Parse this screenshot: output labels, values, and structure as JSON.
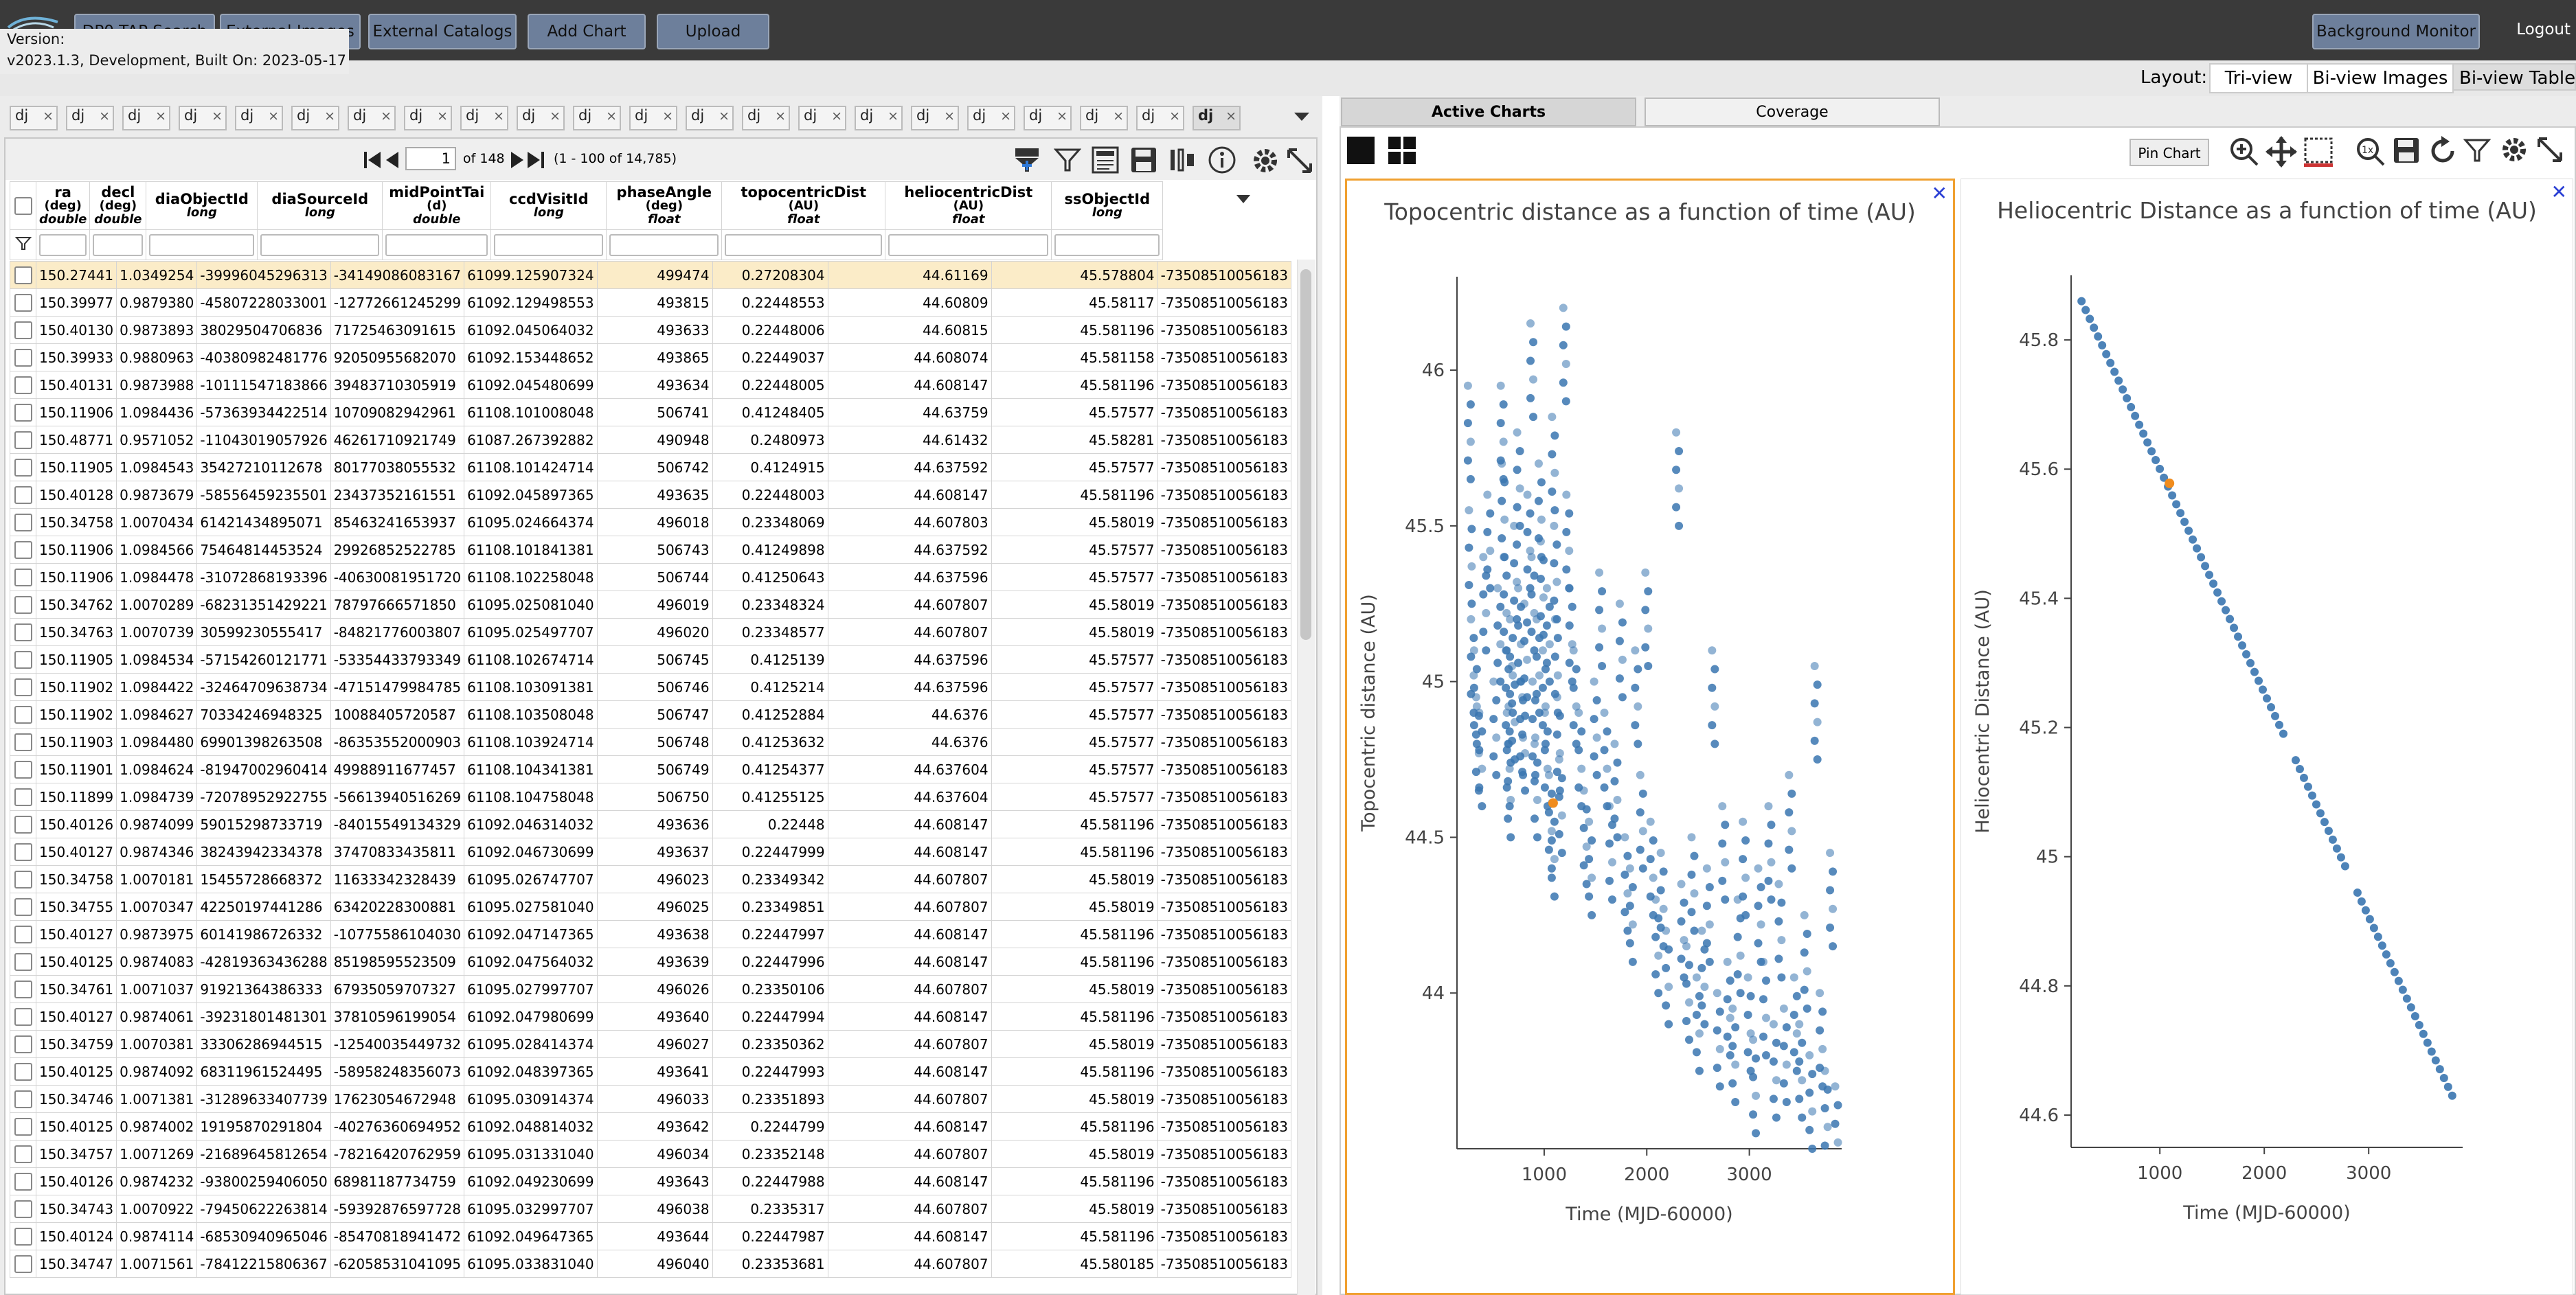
{
  "toolbar": {
    "buttons": [
      "DP0 TAP Search",
      "External Images",
      "External Catalogs",
      "Add Chart",
      "Upload"
    ],
    "right_buttons": [
      "Background Monitor"
    ],
    "logout": "Logout"
  },
  "version": {
    "line1": "Version:",
    "line2": "v2023.1.3, Development, Built On: 2023-05-17"
  },
  "layout": {
    "label": "Layout:",
    "options": [
      "Tri-view",
      "Bi-view Images",
      "Bi-view Tables"
    ]
  },
  "tables": {
    "tab_label": "dj",
    "tab_count": 22,
    "active_tab_label": "dj",
    "pager": {
      "page": "1",
      "of": "of 148",
      "range": "(1 - 100 of 14,785)"
    },
    "columns": [
      {
        "name": "ra",
        "unit": "(deg)",
        "type": "double"
      },
      {
        "name": "decl",
        "unit": "(deg)",
        "type": "double"
      },
      {
        "name": "diaObjectId",
        "unit": "",
        "type": "long"
      },
      {
        "name": "diaSourceId",
        "unit": "",
        "type": "long"
      },
      {
        "name": "midPointTai",
        "unit": "(d)",
        "type": "double"
      },
      {
        "name": "ccdVisitId",
        "unit": "",
        "type": "long"
      },
      {
        "name": "phaseAngle",
        "unit": "(deg)",
        "type": "float"
      },
      {
        "name": "topocentricDist",
        "unit": "(AU)",
        "type": "float"
      },
      {
        "name": "heliocentricDist",
        "unit": "(AU)",
        "type": "float"
      },
      {
        "name": "ssObjectId",
        "unit": "",
        "type": "long"
      }
    ],
    "rows": [
      [
        "150.27441",
        "1.0349254",
        "-39996045296313",
        "-34149086083167",
        "61099.125907324",
        "499474",
        "0.27208304",
        "44.61169",
        "45.578804",
        "-73508510056183"
      ],
      [
        "150.39977",
        "0.9879380",
        "-45807228033001",
        "-12772661245299",
        "61092.129498553",
        "493815",
        "0.22448553",
        "44.60809",
        "45.58117",
        "-73508510056183"
      ],
      [
        "150.40130",
        "0.9873893",
        "38029504706836",
        "71725463091615",
        "61092.045064032",
        "493633",
        "0.22448006",
        "44.60815",
        "45.581196",
        "-73508510056183"
      ],
      [
        "150.39933",
        "0.9880963",
        "-40380982481776",
        "92050955682070",
        "61092.153448652",
        "493865",
        "0.22449037",
        "44.608074",
        "45.581158",
        "-73508510056183"
      ],
      [
        "150.40131",
        "0.9873988",
        "-10111547183866",
        "39483710305919",
        "61092.045480699",
        "493634",
        "0.22448005",
        "44.608147",
        "45.581196",
        "-73508510056183"
      ],
      [
        "150.11906",
        "1.0984436",
        "-57363934422514",
        "10709082942961",
        "61108.101008048",
        "506741",
        "0.41248405",
        "44.63759",
        "45.57577",
        "-73508510056183"
      ],
      [
        "150.48771",
        "0.9571052",
        "-11043019057926",
        "46261710921749",
        "61087.267392882",
        "490948",
        "0.2480973",
        "44.61432",
        "45.58281",
        "-73508510056183"
      ],
      [
        "150.11905",
        "1.0984543",
        "35427210112678",
        "80177038055532",
        "61108.101424714",
        "506742",
        "0.4124915",
        "44.637592",
        "45.57577",
        "-73508510056183"
      ],
      [
        "150.40128",
        "0.9873679",
        "-58556459235501",
        "23437352161551",
        "61092.045897365",
        "493635",
        "0.22448003",
        "44.608147",
        "45.581196",
        "-73508510056183"
      ],
      [
        "150.34758",
        "1.0070434",
        "61421434895071",
        "85463241653937",
        "61095.024664374",
        "496018",
        "0.23348069",
        "44.607803",
        "45.58019",
        "-73508510056183"
      ],
      [
        "150.11906",
        "1.0984566",
        "75464814453524",
        "29926852522785",
        "61108.101841381",
        "506743",
        "0.41249898",
        "44.637592",
        "45.57577",
        "-73508510056183"
      ],
      [
        "150.11906",
        "1.0984478",
        "-31072868193396",
        "-40630081951720",
        "61108.102258048",
        "506744",
        "0.41250643",
        "44.637596",
        "45.57577",
        "-73508510056183"
      ],
      [
        "150.34762",
        "1.0070289",
        "-68231351429221",
        "78797666571850",
        "61095.025081040",
        "496019",
        "0.23348324",
        "44.607807",
        "45.58019",
        "-73508510056183"
      ],
      [
        "150.34763",
        "1.0070739",
        "30599230555417",
        "-84821776003807",
        "61095.025497707",
        "496020",
        "0.23348577",
        "44.607807",
        "45.58019",
        "-73508510056183"
      ],
      [
        "150.11905",
        "1.0984534",
        "-57154260121771",
        "-53354433793349",
        "61108.102674714",
        "506745",
        "0.4125139",
        "44.637596",
        "45.57577",
        "-73508510056183"
      ],
      [
        "150.11902",
        "1.0984422",
        "-32464709638734",
        "-47151479984785",
        "61108.103091381",
        "506746",
        "0.4125214",
        "44.637596",
        "45.57577",
        "-73508510056183"
      ],
      [
        "150.11902",
        "1.0984627",
        "70334246948325",
        "10088405720587",
        "61108.103508048",
        "506747",
        "0.41252884",
        "44.6376",
        "45.57577",
        "-73508510056183"
      ],
      [
        "150.11903",
        "1.0984480",
        "69901398263508",
        "-86353552000903",
        "61108.103924714",
        "506748",
        "0.41253632",
        "44.6376",
        "45.57577",
        "-73508510056183"
      ],
      [
        "150.11901",
        "1.0984624",
        "-81947002960414",
        "49988911677457",
        "61108.104341381",
        "506749",
        "0.41254377",
        "44.637604",
        "45.57577",
        "-73508510056183"
      ],
      [
        "150.11899",
        "1.0984739",
        "-72078952922755",
        "-56613940516269",
        "61108.104758048",
        "506750",
        "0.41255125",
        "44.637604",
        "45.57577",
        "-73508510056183"
      ],
      [
        "150.40126",
        "0.9874099",
        "59015298733719",
        "-84015549134329",
        "61092.046314032",
        "493636",
        "0.22448",
        "44.608147",
        "45.581196",
        "-73508510056183"
      ],
      [
        "150.40127",
        "0.9874346",
        "38243942334378",
        "37470833435811",
        "61092.046730699",
        "493637",
        "0.22447999",
        "44.608147",
        "45.581196",
        "-73508510056183"
      ],
      [
        "150.34758",
        "1.0070181",
        "15455728668372",
        "11633342328439",
        "61095.026747707",
        "496023",
        "0.23349342",
        "44.607807",
        "45.58019",
        "-73508510056183"
      ],
      [
        "150.34755",
        "1.0070347",
        "42250197441286",
        "63420228300881",
        "61095.027581040",
        "496025",
        "0.23349851",
        "44.607807",
        "45.58019",
        "-73508510056183"
      ],
      [
        "150.40127",
        "0.9873975",
        "60141986726332",
        "-10775586104030",
        "61092.047147365",
        "493638",
        "0.22447997",
        "44.608147",
        "45.581196",
        "-73508510056183"
      ],
      [
        "150.40125",
        "0.9874083",
        "-42819363436288",
        "85198595523509",
        "61092.047564032",
        "493639",
        "0.22447996",
        "44.608147",
        "45.581196",
        "-73508510056183"
      ],
      [
        "150.34761",
        "1.0071037",
        "91921364386333",
        "67935059707327",
        "61095.027997707",
        "496026",
        "0.23350106",
        "44.607807",
        "45.58019",
        "-73508510056183"
      ],
      [
        "150.40127",
        "0.9874061",
        "-39231801481301",
        "37810596199054",
        "61092.047980699",
        "493640",
        "0.22447994",
        "44.608147",
        "45.581196",
        "-73508510056183"
      ],
      [
        "150.34759",
        "1.0070381",
        "33306286944515",
        "-12540035449732",
        "61095.028414374",
        "496027",
        "0.23350362",
        "44.607807",
        "45.58019",
        "-73508510056183"
      ],
      [
        "150.40125",
        "0.9874092",
        "68311961524495",
        "-58958248356073",
        "61092.048397365",
        "493641",
        "0.22447993",
        "44.608147",
        "45.581196",
        "-73508510056183"
      ],
      [
        "150.34746",
        "1.0071381",
        "-31289633407739",
        "17623054672948",
        "61095.030914374",
        "496033",
        "0.23351893",
        "44.607807",
        "45.58019",
        "-73508510056183"
      ],
      [
        "150.40125",
        "0.9874002",
        "19195870291804",
        "-40276360694952",
        "61092.048814032",
        "493642",
        "0.2244799",
        "44.608147",
        "45.581196",
        "-73508510056183"
      ],
      [
        "150.34757",
        "1.0071269",
        "-21689645812654",
        "-78216420762959",
        "61095.031331040",
        "496034",
        "0.23352148",
        "44.607807",
        "45.58019",
        "-73508510056183"
      ],
      [
        "150.40126",
        "0.9874232",
        "-93800259406050",
        "68981187734759",
        "61092.049230699",
        "493643",
        "0.22447988",
        "44.608147",
        "45.581196",
        "-73508510056183"
      ],
      [
        "150.34743",
        "1.0070922",
        "-79450622263814",
        "-59392876597728",
        "61095.032997707",
        "496038",
        "0.2335317",
        "44.607807",
        "45.58019",
        "-73508510056183"
      ],
      [
        "150.40124",
        "0.9874114",
        "-68530940965046",
        "-85470818941472",
        "61092.049647365",
        "493644",
        "0.22447987",
        "44.608147",
        "45.581196",
        "-73508510056183"
      ],
      [
        "150.34747",
        "1.0071561",
        "-78412215806367",
        "-62058531041095",
        "61095.033831040",
        "496040",
        "0.23353681",
        "44.607807",
        "45.580185",
        "-73508510056183"
      ]
    ]
  },
  "charts": {
    "tabs": [
      "Active Charts",
      "Coverage"
    ],
    "pin_label": "Pin Chart",
    "accent": "#f0a030",
    "point_color": "#3a76b0",
    "highlight_color": "#f08c1e"
  },
  "chart_data": [
    {
      "type": "scatter",
      "title": "Topocentric distance as a function of time (AU)",
      "xlabel": "Time (MJD-60000)",
      "ylabel": "Topocentric distance (AU)",
      "xlim": [
        150,
        3900
      ],
      "ylim": [
        43.5,
        46.3
      ],
      "xticks": [
        1000,
        2000,
        3000
      ],
      "yticks": [
        44,
        44.5,
        45,
        45.5,
        46
      ],
      "highlight": {
        "x": 1087,
        "y": 44.61
      },
      "points": [
        [
          270,
          45.95
        ],
        [
          280,
          45.55
        ],
        [
          300,
          45.2
        ],
        [
          330,
          45.1
        ],
        [
          350,
          44.95
        ],
        [
          380,
          44.9
        ],
        [
          420,
          45.4
        ],
        [
          460,
          45.6
        ],
        [
          520,
          45.0
        ],
        [
          560,
          45.3
        ],
        [
          590,
          45.95
        ],
        [
          600,
          45.7
        ],
        [
          620,
          45.4
        ],
        [
          640,
          45.1
        ],
        [
          650,
          44.9
        ],
        [
          660,
          44.8
        ],
        [
          680,
          45.2
        ],
        [
          700,
          45.05
        ],
        [
          720,
          45.5
        ],
        [
          750,
          45.8
        ],
        [
          760,
          45.3
        ],
        [
          780,
          45.0
        ],
        [
          800,
          44.95
        ],
        [
          820,
          45.25
        ],
        [
          850,
          45.6
        ],
        [
          880,
          46.15
        ],
        [
          890,
          45.4
        ],
        [
          900,
          45.0
        ],
        [
          920,
          44.8
        ],
        [
          940,
          45.2
        ],
        [
          960,
          45.7
        ],
        [
          980,
          45.45
        ],
        [
          1000,
          45.1
        ],
        [
          1020,
          44.9
        ],
        [
          1040,
          45.3
        ],
        [
          1060,
          44.7
        ],
        [
          1087,
          44.61
        ],
        [
          1090,
          45.85
        ],
        [
          1110,
          45.5
        ],
        [
          1120,
          45.2
        ],
        [
          1140,
          44.95
        ],
        [
          1160,
          44.75
        ],
        [
          1200,
          46.2
        ],
        [
          1230,
          45.6
        ],
        [
          1260,
          45.3
        ],
        [
          1300,
          45.1
        ],
        [
          1350,
          44.9
        ],
        [
          1400,
          44.65
        ],
        [
          1450,
          44.55
        ],
        [
          1500,
          45.0
        ],
        [
          1550,
          45.35
        ],
        [
          1600,
          44.9
        ],
        [
          1650,
          44.6
        ],
        [
          1700,
          44.8
        ],
        [
          1750,
          45.25
        ],
        [
          1800,
          44.5
        ],
        [
          1850,
          44.4
        ],
        [
          1900,
          45.1
        ],
        [
          1950,
          44.7
        ],
        [
          2000,
          45.35
        ],
        [
          2050,
          44.55
        ],
        [
          2100,
          44.3
        ],
        [
          2150,
          44.45
        ],
        [
          2200,
          44.2
        ],
        [
          2300,
          45.8
        ],
        [
          2350,
          44.35
        ],
        [
          2400,
          44.15
        ],
        [
          2450,
          44.5
        ],
        [
          2500,
          44.05
        ],
        [
          2550,
          44.2
        ],
        [
          2600,
          44.4
        ],
        [
          2650,
          45.1
        ],
        [
          2700,
          44.0
        ],
        [
          2750,
          44.6
        ],
        [
          2800,
          44.1
        ],
        [
          2850,
          43.95
        ],
        [
          2900,
          44.3
        ],
        [
          2950,
          44.55
        ],
        [
          3000,
          44.05
        ],
        [
          3050,
          43.85
        ],
        [
          3100,
          44.4
        ],
        [
          3150,
          44.1
        ],
        [
          3200,
          44.6
        ],
        [
          3250,
          43.9
        ],
        [
          3300,
          44.35
        ],
        [
          3350,
          43.95
        ],
        [
          3400,
          44.7
        ],
        [
          3450,
          44.05
        ],
        [
          3500,
          43.9
        ],
        [
          3550,
          44.25
        ],
        [
          3600,
          43.8
        ],
        [
          3650,
          45.05
        ],
        [
          3700,
          44.0
        ],
        [
          3750,
          43.75
        ],
        [
          3800,
          44.45
        ],
        [
          3850,
          43.7
        ]
      ]
    },
    {
      "type": "scatter",
      "title": "Heliocentric Distance as a function of time (AU)",
      "xlabel": "Time (MJD-60000)",
      "ylabel": "Heliocentric Distance (AU)",
      "xlim": [
        150,
        3900
      ],
      "ylim": [
        44.55,
        45.9
      ],
      "xticks": [
        1000,
        2000,
        3000
      ],
      "yticks": [
        44.6,
        44.8,
        45,
        45.2,
        45.4,
        45.6,
        45.8
      ],
      "highlight": {
        "x": 1092,
        "y": 45.578
      },
      "trend": {
        "x0": 250,
        "y0": 45.86,
        "x1": 3800,
        "y1": 44.63
      }
    }
  ]
}
